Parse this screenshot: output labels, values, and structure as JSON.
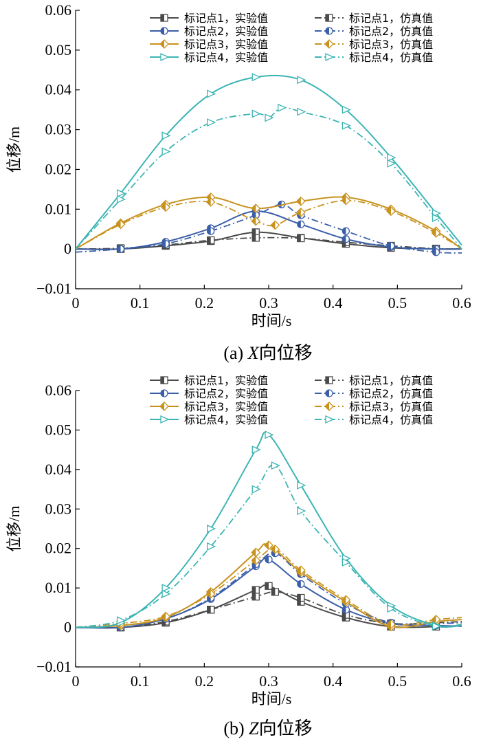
{
  "chart_data": [
    {
      "type": "line",
      "caption": "(a)  X向位移",
      "caption_prefix": "(a)  ",
      "caption_axis": "X",
      "caption_suffix": "向位移",
      "xlabel": "时间/s",
      "ylabel": "位移/m",
      "xlim": [
        0,
        0.6
      ],
      "ylim": [
        -0.01,
        0.06
      ],
      "xticks": [
        "0",
        "0.1",
        "0.2",
        "0.3",
        "0.4",
        "0.5",
        "0.6"
      ],
      "yticks": [
        "−0.01",
        "0",
        "0.01",
        "0.02",
        "0.03",
        "0.04",
        "0.05",
        "0.06"
      ],
      "legend_position": "top-right",
      "series": [
        {
          "name": "标记点1，实验值",
          "color": "#4a4a4a",
          "dash": "solid",
          "marker": "square",
          "x": [
            0,
            0.07,
            0.14,
            0.21,
            0.28,
            0.35,
            0.42,
            0.49,
            0.56,
            0.6
          ],
          "y": [
            0,
            0,
            0.0008,
            0.002,
            0.0042,
            0.0028,
            0.0013,
            0.0003,
            0,
            0
          ]
        },
        {
          "name": "标记点1，仿真值",
          "color": "#4a4a4a",
          "dash": "dashdot",
          "marker": "square",
          "x": [
            0,
            0.07,
            0.14,
            0.21,
            0.28,
            0.35,
            0.42,
            0.49,
            0.56,
            0.6
          ],
          "y": [
            0,
            0.0002,
            0.001,
            0.0022,
            0.0028,
            0.0027,
            0.0017,
            0.0008,
            0.0001,
            0
          ]
        },
        {
          "name": "标记点2，实验值",
          "color": "#3a5ea8",
          "dash": "solid",
          "marker": "circle",
          "x": [
            0,
            0.07,
            0.14,
            0.21,
            0.28,
            0.35,
            0.42,
            0.49,
            0.56,
            0.6
          ],
          "y": [
            0,
            0,
            0.0018,
            0.0052,
            0.0095,
            0.0062,
            0.0025,
            0.0005,
            0,
            0
          ]
        },
        {
          "name": "标记点2，仿真值",
          "color": "#3a5ea8",
          "dash": "dashdot",
          "marker": "circle",
          "x": [
            0,
            0.07,
            0.14,
            0.21,
            0.28,
            0.32,
            0.35,
            0.42,
            0.49,
            0.56,
            0.6
          ],
          "y": [
            -0.0008,
            0,
            0.0013,
            0.0045,
            0.0085,
            0.0112,
            0.0085,
            0.0045,
            0.0008,
            -0.0008,
            -0.001
          ]
        },
        {
          "name": "标记点3，实验值",
          "color": "#c8921e",
          "dash": "solid",
          "marker": "diamond",
          "x": [
            0,
            0.07,
            0.14,
            0.21,
            0.28,
            0.35,
            0.42,
            0.49,
            0.56,
            0.6
          ],
          "y": [
            0,
            0.0065,
            0.0112,
            0.013,
            0.0102,
            0.012,
            0.013,
            0.01,
            0.0045,
            0
          ]
        },
        {
          "name": "标记点3，仿真值",
          "color": "#c8921e",
          "dash": "dashdot",
          "marker": "diamond",
          "x": [
            0,
            0.07,
            0.14,
            0.21,
            0.28,
            0.31,
            0.35,
            0.42,
            0.49,
            0.56,
            0.6
          ],
          "y": [
            0,
            0.0062,
            0.0105,
            0.0118,
            0.007,
            0.006,
            0.0092,
            0.0122,
            0.0095,
            0.004,
            0
          ]
        },
        {
          "name": "标记点4，实验值",
          "color": "#3cb4b4",
          "dash": "solid",
          "marker": "triangle",
          "x": [
            0,
            0.07,
            0.14,
            0.21,
            0.28,
            0.35,
            0.42,
            0.49,
            0.56,
            0.6
          ],
          "y": [
            0,
            0.014,
            0.0285,
            0.039,
            0.0432,
            0.0425,
            0.035,
            0.023,
            0.009,
            0.001
          ]
        },
        {
          "name": "标记点4，仿真值",
          "color": "#3cb4b4",
          "dash": "dashdot",
          "marker": "triangle",
          "x": [
            0,
            0.07,
            0.14,
            0.21,
            0.28,
            0.3,
            0.32,
            0.35,
            0.42,
            0.49,
            0.56,
            0.6
          ],
          "y": [
            0,
            0.0125,
            0.0245,
            0.0318,
            0.034,
            0.033,
            0.0355,
            0.0345,
            0.031,
            0.0215,
            0.0078,
            0
          ]
        }
      ]
    },
    {
      "type": "line",
      "caption": "(b)  Z向位移",
      "caption_prefix": "(b)  ",
      "caption_axis": "Z",
      "caption_suffix": "向位移",
      "xlabel": "时间/s",
      "ylabel": "位移/m",
      "xlim": [
        0,
        0.6
      ],
      "ylim": [
        -0.01,
        0.06
      ],
      "xticks": [
        "0",
        "0.1",
        "0.2",
        "0.3",
        "0.4",
        "0.5",
        "0.6"
      ],
      "yticks": [
        "−0.01",
        "0",
        "0.01",
        "0.02",
        "0.03",
        "0.04",
        "0.05",
        "0.06"
      ],
      "legend_position": "top-right",
      "series": [
        {
          "name": "标记点1，实验值",
          "color": "#4a4a4a",
          "dash": "solid",
          "marker": "square",
          "x": [
            0,
            0.07,
            0.14,
            0.21,
            0.28,
            0.3,
            0.35,
            0.42,
            0.49,
            0.56,
            0.6
          ],
          "y": [
            0,
            0,
            0.0012,
            0.0045,
            0.0095,
            0.0105,
            0.0065,
            0.0025,
            0.0002,
            0.0002,
            0.0005
          ]
        },
        {
          "name": "标记点1，仿真值",
          "color": "#4a4a4a",
          "dash": "dashdot",
          "marker": "square",
          "x": [
            0,
            0.07,
            0.14,
            0.21,
            0.28,
            0.31,
            0.35,
            0.42,
            0.49,
            0.56,
            0.6
          ],
          "y": [
            0,
            0,
            0.0015,
            0.0045,
            0.0078,
            0.009,
            0.0075,
            0.0032,
            0.001,
            0.0012,
            0.0015
          ]
        },
        {
          "name": "标记点2，实验值",
          "color": "#3a5ea8",
          "dash": "solid",
          "marker": "circle",
          "x": [
            0,
            0.07,
            0.14,
            0.21,
            0.28,
            0.3,
            0.35,
            0.42,
            0.49,
            0.56,
            0.6
          ],
          "y": [
            0,
            0,
            0.0022,
            0.0072,
            0.0155,
            0.0172,
            0.011,
            0.0045,
            0.001,
            0.0005,
            0.0003
          ]
        },
        {
          "name": "标记点2，仿真值",
          "color": "#3a5ea8",
          "dash": "dashdot",
          "marker": "circle",
          "x": [
            0,
            0.07,
            0.14,
            0.21,
            0.28,
            0.31,
            0.35,
            0.42,
            0.49,
            0.56,
            0.6
          ],
          "y": [
            0,
            0.0005,
            0.0022,
            0.0075,
            0.016,
            0.0188,
            0.0135,
            0.006,
            0.0012,
            0.001,
            0.0012
          ]
        },
        {
          "name": "标记点3，实验值",
          "color": "#c8921e",
          "dash": "solid",
          "marker": "diamond",
          "x": [
            0,
            0.07,
            0.14,
            0.21,
            0.28,
            0.3,
            0.35,
            0.42,
            0.49,
            0.56,
            0.6
          ],
          "y": [
            0,
            0.0005,
            0.0025,
            0.009,
            0.019,
            0.0208,
            0.014,
            0.0065,
            0.0002,
            0.0015,
            0.002
          ]
        },
        {
          "name": "标记点3，仿真值",
          "color": "#c8921e",
          "dash": "dashdot",
          "marker": "diamond",
          "x": [
            0,
            0.07,
            0.14,
            0.21,
            0.28,
            0.31,
            0.35,
            0.42,
            0.49,
            0.56,
            0.6
          ],
          "y": [
            0,
            0.001,
            0.0028,
            0.0085,
            0.017,
            0.0198,
            0.0145,
            0.007,
            0.0008,
            0.002,
            0.0025
          ]
        },
        {
          "name": "标记点4，实验值",
          "color": "#3cb4b4",
          "dash": "solid",
          "marker": "triangle",
          "x": [
            0,
            0.07,
            0.14,
            0.21,
            0.28,
            0.3,
            0.35,
            0.42,
            0.49,
            0.56,
            0.6
          ],
          "y": [
            0,
            0.0012,
            0.01,
            0.025,
            0.045,
            0.0488,
            0.036,
            0.0175,
            0.0055,
            0.0005,
            0.0005
          ]
        },
        {
          "name": "标记点4，仿真值",
          "color": "#3cb4b4",
          "dash": "dashdot",
          "marker": "triangle",
          "x": [
            0,
            0.07,
            0.14,
            0.21,
            0.28,
            0.31,
            0.35,
            0.42,
            0.49,
            0.56,
            0.6
          ],
          "y": [
            0,
            0.0018,
            0.0085,
            0.0205,
            0.035,
            0.041,
            0.0295,
            0.0165,
            0.0048,
            0.0003,
            0.0008
          ]
        }
      ]
    }
  ]
}
